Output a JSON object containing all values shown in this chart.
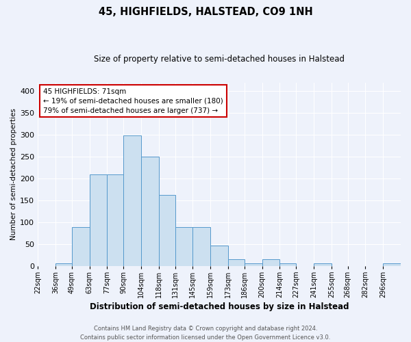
{
  "title": "45, HIGHFIELDS, HALSTEAD, CO9 1NH",
  "subtitle": "Size of property relative to semi-detached houses in Halstead",
  "xlabel": "Distribution of semi-detached houses by size in Halstead",
  "ylabel": "Number of semi-detached properties",
  "bins": [
    "22sqm",
    "36sqm",
    "49sqm",
    "63sqm",
    "77sqm",
    "90sqm",
    "104sqm",
    "118sqm",
    "131sqm",
    "145sqm",
    "159sqm",
    "173sqm",
    "186sqm",
    "200sqm",
    "214sqm",
    "227sqm",
    "241sqm",
    "255sqm",
    "268sqm",
    "282sqm",
    "296sqm"
  ],
  "bin_edges": [
    22,
    36,
    49,
    63,
    77,
    90,
    104,
    118,
    131,
    145,
    159,
    173,
    186,
    200,
    214,
    227,
    241,
    255,
    268,
    282,
    296
  ],
  "bar_heights": [
    0,
    5,
    88,
    210,
    210,
    298,
    250,
    163,
    88,
    88,
    47,
    15,
    5,
    15,
    5,
    0,
    5,
    0,
    0,
    0,
    5
  ],
  "bar_color": "#cce0f0",
  "bar_edge_color": "#5599cc",
  "ylim": [
    0,
    420
  ],
  "yticks": [
    0,
    50,
    100,
    150,
    200,
    250,
    300,
    350,
    400
  ],
  "background_color": "#eef2fb",
  "grid_color": "#ffffff",
  "annotation_text": "45 HIGHFIELDS: 71sqm\n← 19% of semi-detached houses are smaller (180)\n79% of semi-detached houses are larger (737) →",
  "annotation_box_color": "#ffffff",
  "annotation_box_edge_color": "#cc0000",
  "footer_line1": "Contains HM Land Registry data © Crown copyright and database right 2024.",
  "footer_line2": "Contains public sector information licensed under the Open Government Licence v3.0."
}
